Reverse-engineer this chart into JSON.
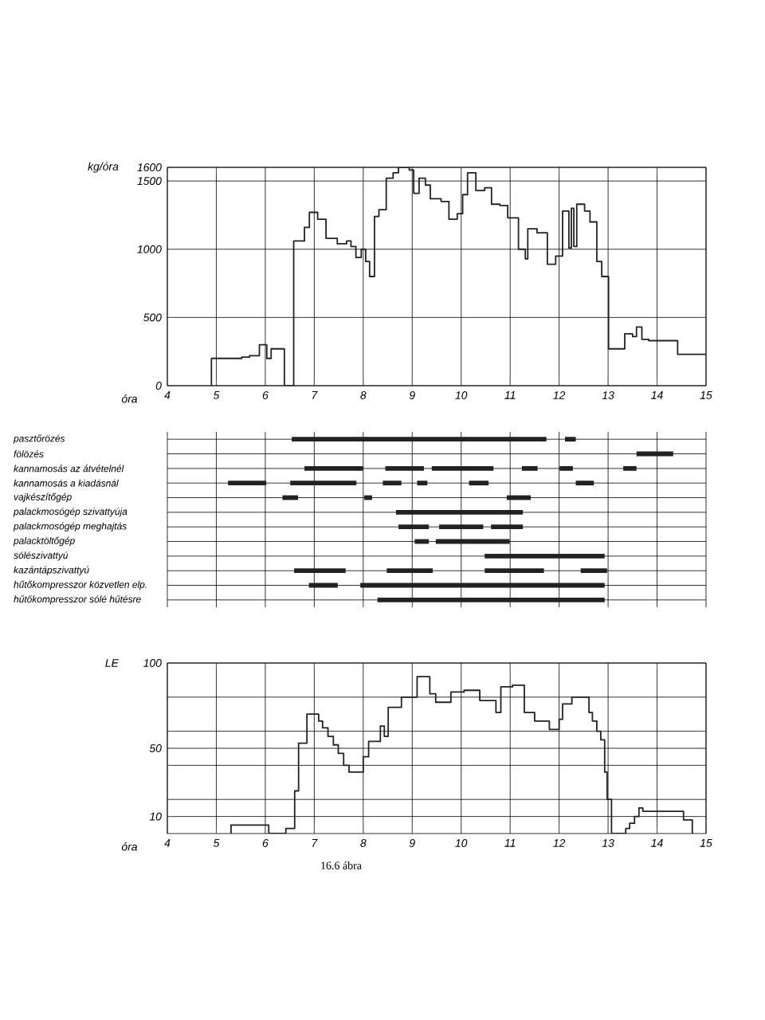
{
  "chart_data": [
    {
      "type": "step",
      "xlabel": "óra",
      "ylabel": "kg/óra",
      "xlim": [
        4,
        15
      ],
      "ylim": [
        0,
        1600
      ],
      "xticks": [
        4,
        5,
        6,
        7,
        8,
        9,
        10,
        11,
        12,
        13,
        14,
        15
      ],
      "yticks": [
        0,
        500,
        1000,
        1500,
        1600
      ],
      "grid": true,
      "x": [
        4.9,
        4.9,
        5.52,
        5.68,
        5.88,
        6.03,
        6.12,
        6.39,
        6.58,
        6.8,
        6.9,
        7.07,
        7.24,
        7.47,
        7.66,
        7.75,
        7.85,
        7.96,
        8.05,
        8.13,
        8.23,
        8.32,
        8.47,
        8.61,
        8.72,
        8.94,
        9.03,
        9.14,
        9.27,
        9.37,
        9.59,
        9.75,
        9.92,
        10.03,
        10.13,
        10.3,
        10.48,
        10.62,
        10.79,
        10.95,
        11.17,
        11.31,
        11.36,
        11.55,
        11.76,
        11.93,
        12.07,
        12.2,
        12.25,
        12.3,
        12.36,
        12.52,
        12.63,
        12.77,
        12.87,
        13.01,
        13.34,
        13.5,
        13.58,
        13.69,
        13.83,
        14.42,
        15
      ],
      "series": [
        {
          "color": "#222222",
          "values": [
            0,
            200,
            210,
            220,
            300,
            200,
            270,
            0,
            1060,
            1160,
            1270,
            1220,
            1080,
            1040,
            1060,
            1020,
            940,
            1000,
            910,
            800,
            1240,
            1290,
            1520,
            1560,
            1600,
            1580,
            1410,
            1520,
            1470,
            1370,
            1350,
            1220,
            1260,
            1400,
            1560,
            1430,
            1450,
            1330,
            1320,
            1230,
            1000,
            930,
            1150,
            1120,
            890,
            950,
            1280,
            1010,
            1300,
            1020,
            1330,
            1280,
            1200,
            910,
            800,
            270,
            380,
            360,
            430,
            340,
            330,
            230,
            230
          ]
        }
      ]
    },
    {
      "type": "bar",
      "orientation": "horizontal",
      "xlim": [
        4,
        15
      ],
      "xticks": [
        4,
        5,
        6,
        7,
        8,
        9,
        10,
        11,
        12,
        13,
        14,
        15
      ],
      "tick_labels": "y",
      "grid": true,
      "categories": [
        "pasztőrözés",
        "fölözés",
        "kannamosás az átvételnél",
        "kannamosás a kiadásnál",
        "vajkészítőgép",
        "palackmosógép szivattyúja",
        "palackmosógép meghajtás",
        "palacktöltőgép",
        "sólészivattyú",
        "kazántápszivattyú",
        "hűtőkompresszor közvetlen elp.",
        "hűtőkompresszor sólé hűtésre"
      ],
      "series": [
        {
          "color": "#222222",
          "base": [
            6.54,
            13.58,
            6.8,
            5.24,
            6.35,
            8.67,
            8.72,
            9.05,
            10.48,
            6.59,
            6.89,
            8.29
          ],
          "values": [
            5.2,
            0.75,
            1.2,
            0.78,
            0.32,
            2.59,
            0.62,
            0.29,
            2.45,
            1.05,
            0.59,
            4.64
          ]
        },
        {
          "color": "#222222",
          "base": [
            12.12,
            null,
            8.45,
            6.51,
            8.02,
            null,
            9.55,
            9.48,
            null,
            8.48,
            7.94,
            null
          ],
          "values": [
            0.22,
            null,
            0.79,
            1.35,
            0.16,
            null,
            0.9,
            1.51,
            null,
            0.94,
            4.99,
            null
          ]
        },
        {
          "color": "#222222",
          "base": [
            null,
            null,
            9.4,
            8.4,
            10.93,
            null,
            10.61,
            null,
            null,
            10.48,
            null,
            null
          ],
          "values": [
            null,
            null,
            1.26,
            0.38,
            0.49,
            null,
            0.65,
            null,
            null,
            1.21,
            null,
            null
          ]
        },
        {
          "color": "#222222",
          "base": [
            null,
            null,
            11.24,
            9.1,
            null,
            null,
            null,
            null,
            null,
            12.44,
            null,
            null
          ],
          "values": [
            null,
            null,
            0.32,
            0.21,
            null,
            null,
            null,
            null,
            null,
            0.54,
            null,
            null
          ]
        },
        {
          "color": "#222222",
          "base": [
            null,
            null,
            12.01,
            10.16,
            null,
            null,
            null,
            null,
            null,
            null,
            null,
            null
          ],
          "values": [
            null,
            null,
            0.27,
            0.4,
            null,
            null,
            null,
            null,
            null,
            null,
            null,
            null
          ]
        },
        {
          "color": "#222222",
          "base": [
            null,
            null,
            13.31,
            12.34,
            null,
            null,
            null,
            null,
            null,
            null,
            null,
            null
          ],
          "values": [
            null,
            null,
            0.27,
            0.37,
            null,
            null,
            null,
            null,
            null,
            null,
            null,
            null
          ]
        }
      ]
    },
    {
      "type": "step",
      "xlabel": "óra",
      "ylabel": "LE",
      "xlim": [
        4,
        15
      ],
      "ylim": [
        0,
        100
      ],
      "xticks": [
        4,
        5,
        6,
        7,
        8,
        9,
        10,
        11,
        12,
        13,
        14,
        15
      ],
      "yticks": [
        10,
        {
          "value": 20,
          "label": null
        },
        {
          "value": 40,
          "label": null
        },
        50,
        {
          "value": 60,
          "label": null
        },
        {
          "value": 80,
          "label": null
        },
        100
      ],
      "grid": true,
      "annotations": [
        "16.6 ábra"
      ],
      "x": [
        5.3,
        5.3,
        6.07,
        6.42,
        6.6,
        6.68,
        6.85,
        7.09,
        7.17,
        7.28,
        7.39,
        7.49,
        7.6,
        7.71,
        8.0,
        8.11,
        8.35,
        8.43,
        8.51,
        8.78,
        9.1,
        9.36,
        9.48,
        9.79,
        10.06,
        10.38,
        10.71,
        10.81,
        11.05,
        11.29,
        11.5,
        11.8,
        12.0,
        12.07,
        12.26,
        12.61,
        12.68,
        12.77,
        12.85,
        12.93,
        12.98,
        13.07,
        13.36,
        13.44,
        13.54,
        13.63,
        13.71,
        14.54,
        14.72
      ],
      "series": [
        {
          "color": "#222222",
          "values": [
            0,
            5,
            0,
            3,
            25,
            53,
            70,
            66,
            62,
            57,
            52,
            47,
            40,
            36,
            45,
            54,
            63,
            57,
            74,
            80,
            92,
            82,
            77,
            83,
            84,
            78,
            71,
            86,
            87,
            71,
            66,
            61,
            67,
            76,
            80,
            71,
            66,
            60,
            55,
            36,
            20,
            0,
            3,
            6,
            10,
            15,
            13,
            8,
            0
          ]
        }
      ]
    }
  ]
}
